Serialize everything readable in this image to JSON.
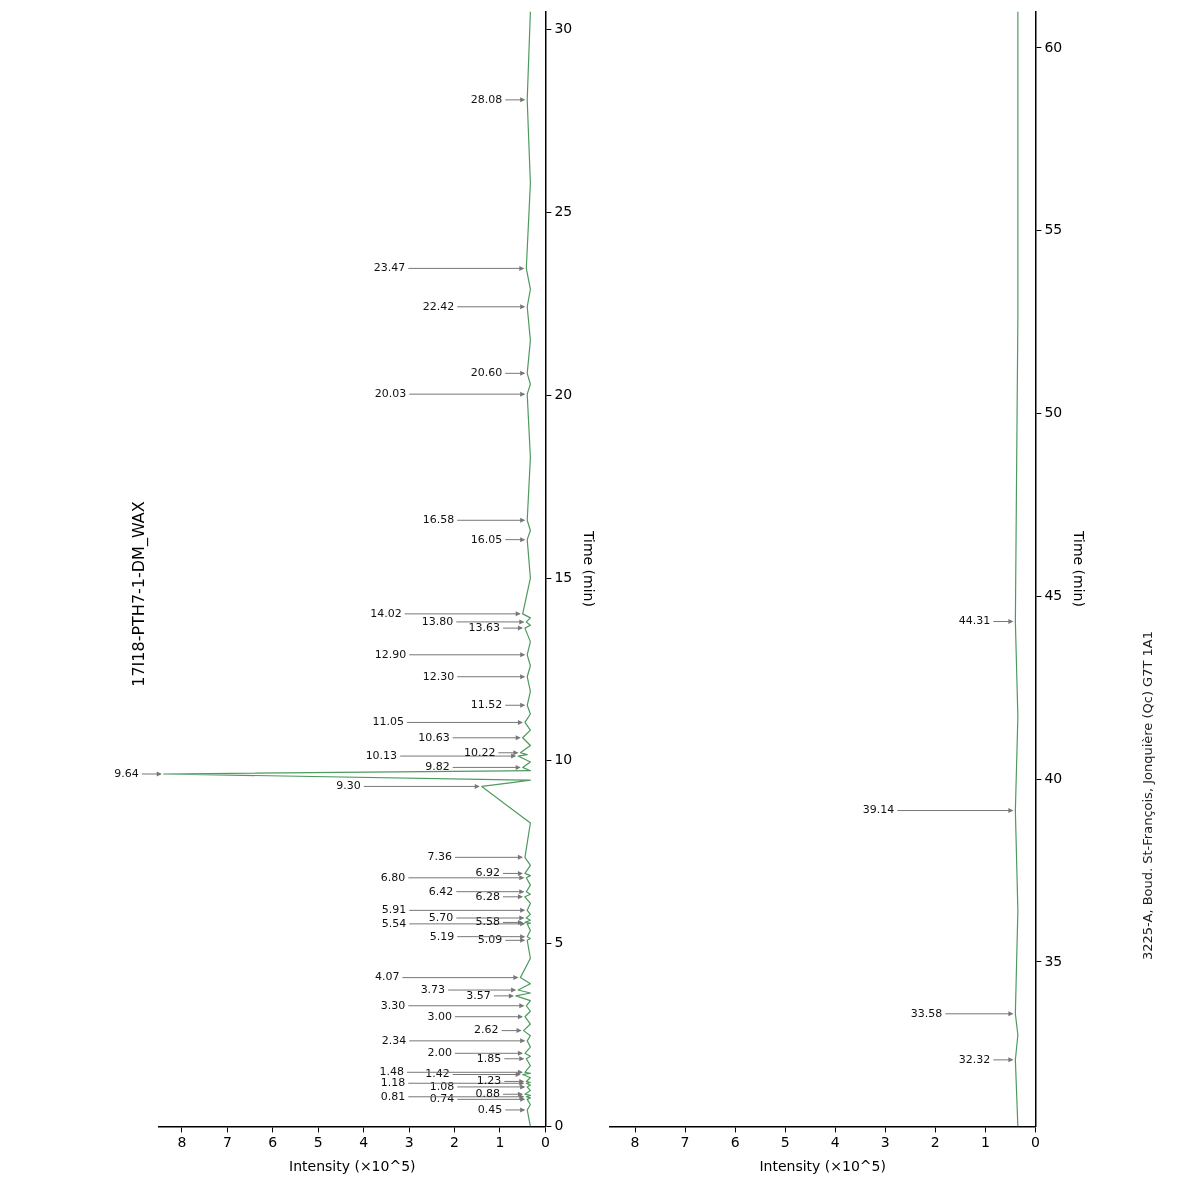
{
  "chart_data": [
    {
      "type": "line",
      "orientation": "horizontal",
      "title": "17I18-PTH7-1-DM_WAX",
      "xlabel": "Intensity (×10^5)",
      "ylabel": "Time (min)",
      "color": "#4e9a5e",
      "marker": "none",
      "line_style": "solid",
      "grid": false,
      "legend": false,
      "xlim": [
        8.5,
        0
      ],
      "xticks": [
        8,
        7,
        6,
        5,
        4,
        3,
        2,
        1,
        0
      ],
      "ylim": [
        0,
        30.5
      ],
      "yticks": [
        0,
        5,
        10,
        15,
        20,
        25,
        30
      ],
      "x": [
        0,
        0.45,
        0.6,
        0.74,
        0.78,
        0.81,
        0.85,
        0.88,
        0.98,
        1.08,
        1.13,
        1.18,
        1.2,
        1.23,
        1.33,
        1.42,
        1.45,
        1.48,
        1.66,
        1.85,
        1.92,
        2.0,
        2.17,
        2.34,
        2.48,
        2.62,
        2.8,
        3.0,
        3.15,
        3.3,
        3.44,
        3.57,
        3.65,
        3.73,
        3.9,
        4.07,
        4.6,
        5.09,
        5.14,
        5.19,
        5.36,
        5.54,
        5.56,
        5.58,
        5.64,
        5.7,
        5.8,
        5.91,
        6.1,
        6.28,
        6.35,
        6.42,
        6.6,
        6.8,
        6.86,
        6.92,
        7.14,
        7.36,
        8.3,
        9.3,
        9.47,
        9.64,
        9.73,
        9.82,
        9.97,
        10.13,
        10.17,
        10.22,
        10.42,
        10.63,
        10.84,
        11.05,
        11.28,
        11.52,
        11.9,
        12.3,
        12.6,
        12.9,
        13.26,
        13.63,
        13.71,
        13.8,
        13.91,
        14.02,
        15.0,
        16.05,
        16.3,
        16.58,
        18.3,
        20.03,
        20.3,
        20.6,
        21.5,
        22.42,
        22.9,
        23.47,
        25.8,
        28.08,
        30.5
      ],
      "values": [
        0.33,
        0.4,
        0.33,
        0.4,
        0.33,
        0.42,
        0.33,
        0.45,
        0.33,
        0.4,
        0.33,
        0.42,
        0.33,
        0.42,
        0.33,
        0.5,
        0.33,
        0.45,
        0.33,
        0.42,
        0.33,
        0.45,
        0.33,
        0.4,
        0.33,
        0.48,
        0.33,
        0.45,
        0.33,
        0.42,
        0.33,
        0.65,
        0.33,
        0.6,
        0.33,
        0.55,
        0.33,
        0.4,
        0.33,
        0.4,
        0.33,
        0.4,
        0.33,
        0.45,
        0.33,
        0.42,
        0.33,
        0.4,
        0.33,
        0.45,
        0.33,
        0.42,
        0.33,
        0.42,
        0.33,
        0.45,
        0.33,
        0.45,
        0.33,
        1.4,
        0.33,
        8.4,
        0.33,
        0.5,
        0.33,
        0.6,
        0.4,
        0.55,
        0.33,
        0.5,
        0.33,
        0.45,
        0.33,
        0.4,
        0.33,
        0.4,
        0.33,
        0.4,
        0.33,
        0.45,
        0.33,
        0.42,
        0.33,
        0.5,
        0.33,
        0.4,
        0.33,
        0.4,
        0.33,
        0.4,
        0.33,
        0.4,
        0.33,
        0.4,
        0.33,
        0.42,
        0.33,
        0.4,
        0.33
      ],
      "annotations": [
        {
          "text": "0.45",
          "y": 0.45,
          "x": 0.4
        },
        {
          "text": "0.74",
          "y": 0.74,
          "x": 0.4
        },
        {
          "text": "0.81",
          "y": 0.81,
          "x": 0.42
        },
        {
          "text": "0.88",
          "y": 0.88,
          "x": 0.45
        },
        {
          "text": "1.08",
          "y": 1.08,
          "x": 0.4
        },
        {
          "text": "1.18",
          "y": 1.18,
          "x": 0.42
        },
        {
          "text": "1.23",
          "y": 1.23,
          "x": 0.42
        },
        {
          "text": "1.42",
          "y": 1.42,
          "x": 0.5
        },
        {
          "text": "1.48",
          "y": 1.48,
          "x": 0.45
        },
        {
          "text": "1.85",
          "y": 1.85,
          "x": 0.42
        },
        {
          "text": "2.00",
          "y": 2.0,
          "x": 0.45
        },
        {
          "text": "2.34",
          "y": 2.34,
          "x": 0.4
        },
        {
          "text": "2.62",
          "y": 2.62,
          "x": 0.48
        },
        {
          "text": "3.00",
          "y": 3.0,
          "x": 0.45
        },
        {
          "text": "3.30",
          "y": 3.3,
          "x": 0.42
        },
        {
          "text": "3.57",
          "y": 3.57,
          "x": 0.65
        },
        {
          "text": "3.73",
          "y": 3.73,
          "x": 0.6
        },
        {
          "text": "4.07",
          "y": 4.07,
          "x": 0.55
        },
        {
          "text": "5.09",
          "y": 5.09,
          "x": 0.4
        },
        {
          "text": "5.19",
          "y": 5.19,
          "x": 0.4
        },
        {
          "text": "5.54",
          "y": 5.54,
          "x": 0.4
        },
        {
          "text": "5.58",
          "y": 5.58,
          "x": 0.45
        },
        {
          "text": "5.70",
          "y": 5.7,
          "x": 0.42
        },
        {
          "text": "5.91",
          "y": 5.91,
          "x": 0.4
        },
        {
          "text": "6.28",
          "y": 6.28,
          "x": 0.45
        },
        {
          "text": "6.42",
          "y": 6.42,
          "x": 0.42
        },
        {
          "text": "6.80",
          "y": 6.8,
          "x": 0.42
        },
        {
          "text": "6.92",
          "y": 6.92,
          "x": 0.45
        },
        {
          "text": "7.36",
          "y": 7.36,
          "x": 0.45
        },
        {
          "text": "9.30",
          "y": 9.3,
          "x": 1.4
        },
        {
          "text": "9.64",
          "y": 9.64,
          "x": 8.4
        },
        {
          "text": "9.82",
          "y": 9.82,
          "x": 0.5
        },
        {
          "text": "10.13",
          "y": 10.13,
          "x": 0.6
        },
        {
          "text": "10.22",
          "y": 10.22,
          "x": 0.55
        },
        {
          "text": "10.63",
          "y": 10.63,
          "x": 0.5
        },
        {
          "text": "11.05",
          "y": 11.05,
          "x": 0.45
        },
        {
          "text": "11.52",
          "y": 11.52,
          "x": 0.4
        },
        {
          "text": "12.30",
          "y": 12.3,
          "x": 0.4
        },
        {
          "text": "12.90",
          "y": 12.9,
          "x": 0.4
        },
        {
          "text": "13.63",
          "y": 13.63,
          "x": 0.45
        },
        {
          "text": "13.80",
          "y": 13.8,
          "x": 0.42
        },
        {
          "text": "14.02",
          "y": 14.02,
          "x": 0.5
        },
        {
          "text": "16.05",
          "y": 16.05,
          "x": 0.4
        },
        {
          "text": "16.58",
          "y": 16.58,
          "x": 0.4
        },
        {
          "text": "20.03",
          "y": 20.03,
          "x": 0.4
        },
        {
          "text": "20.60",
          "y": 20.6,
          "x": 0.4
        },
        {
          "text": "22.42",
          "y": 22.42,
          "x": 0.4
        },
        {
          "text": "23.47",
          "y": 23.47,
          "x": 0.42
        },
        {
          "text": "28.08",
          "y": 28.08,
          "x": 0.4
        }
      ]
    },
    {
      "type": "line",
      "orientation": "horizontal",
      "xlabel": "Intensity (×10^5)",
      "ylabel": "Time (min)",
      "color": "#4e9a5e",
      "marker": "none",
      "line_style": "solid",
      "grid": false,
      "legend": false,
      "xlim": [
        8.5,
        0
      ],
      "xticks": [
        8,
        7,
        6,
        5,
        4,
        3,
        2,
        1,
        0
      ],
      "ylim": [
        30.5,
        61
      ],
      "yticks": [
        35,
        40,
        45,
        50,
        55,
        60
      ],
      "x": [
        30.5,
        32.32,
        33.0,
        33.58,
        36.4,
        39.14,
        41.7,
        44.31,
        52.6,
        61
      ],
      "values": [
        0.35,
        0.4,
        0.35,
        0.4,
        0.35,
        0.4,
        0.35,
        0.4,
        0.35,
        0.35
      ],
      "annotations": [
        {
          "text": "32.32",
          "y": 32.32,
          "x": 0.4
        },
        {
          "text": "33.58",
          "y": 33.58,
          "x": 0.4
        },
        {
          "text": "39.14",
          "y": 39.14,
          "x": 0.4
        },
        {
          "text": "44.31",
          "y": 44.31,
          "x": 0.4
        },
        "3225-A, Boud. St-François, Jonquière (Qc) G7T 1A1"
      ]
    }
  ]
}
